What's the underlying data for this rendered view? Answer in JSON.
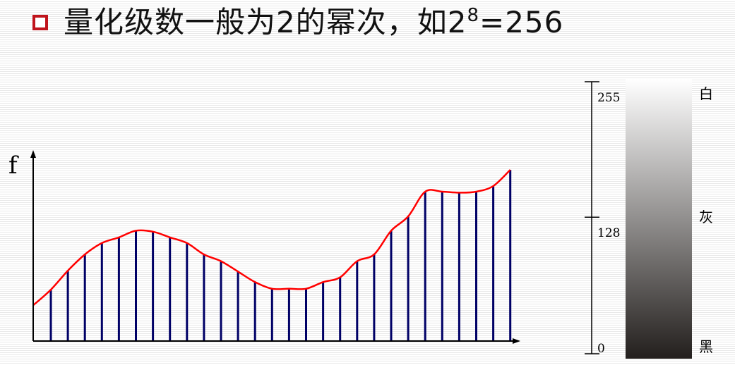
{
  "header": {
    "title_prefix": "量化级数一般为2的幂次，如2",
    "title_exponent": "8",
    "title_suffix": "=256"
  },
  "signal_plot": {
    "y_axis_label": "f",
    "curve_color": "#ff0000",
    "bar_color": "#000066",
    "sample_values": [
      0.27,
      0.37,
      0.455,
      0.515,
      0.545,
      0.58,
      0.575,
      0.545,
      0.515,
      0.455,
      0.42,
      0.365,
      0.31,
      0.275,
      0.275,
      0.275,
      0.31,
      0.335,
      0.42,
      0.455,
      0.58,
      0.655,
      0.785,
      0.785,
      0.78,
      0.785,
      0.815,
      0.9
    ]
  },
  "gray_scale": {
    "ticks": [
      {
        "value": 255,
        "label": "255"
      },
      {
        "value": 128,
        "label": "128"
      },
      {
        "value": 0,
        "label": "0"
      }
    ],
    "side_labels": {
      "white": "白",
      "gray": "灰",
      "black": "黑"
    },
    "gradient_top_color": "#ffffff",
    "gradient_bottom_color": "#231f1d"
  }
}
